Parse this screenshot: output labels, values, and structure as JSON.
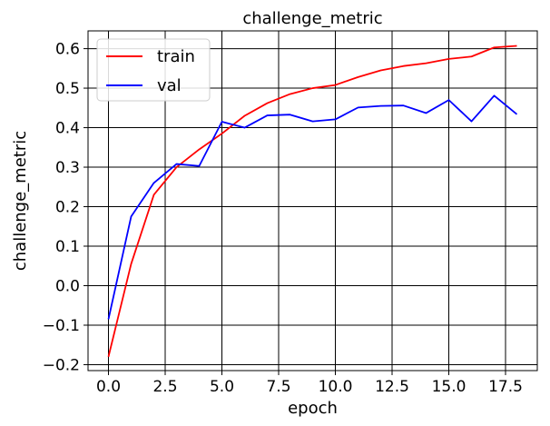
{
  "chart_data": {
    "type": "line",
    "title": "challenge_metric",
    "xlabel": "epoch",
    "ylabel": "challenge_metric",
    "xlim": [
      -0.9,
      18.9
    ],
    "ylim": [
      -0.215,
      0.645
    ],
    "x_ticks": [
      0,
      2.5,
      5,
      7.5,
      10,
      12.5,
      15,
      17.5
    ],
    "x_tick_labels": [
      "0.0",
      "2.5",
      "5.0",
      "7.5",
      "10.0",
      "12.5",
      "15.0",
      "17.5"
    ],
    "y_ticks": [
      -0.2,
      -0.1,
      0.0,
      0.1,
      0.2,
      0.3,
      0.4,
      0.5,
      0.6
    ],
    "y_tick_labels": [
      "−0.2",
      "−0.1",
      "0.0",
      "0.1",
      "0.2",
      "0.3",
      "0.4",
      "0.5",
      "0.6"
    ],
    "grid": true,
    "legend_position": "top-left",
    "x": [
      0,
      1,
      2,
      3,
      4,
      5,
      6,
      7,
      8,
      9,
      10,
      11,
      12,
      13,
      14,
      15,
      16,
      17,
      18
    ],
    "series": [
      {
        "name": "train",
        "color": "#ff0000",
        "values": [
          -0.18,
          0.055,
          0.23,
          0.3,
          0.345,
          0.385,
          0.43,
          0.462,
          0.485,
          0.5,
          0.508,
          0.528,
          0.545,
          0.556,
          0.563,
          0.574,
          0.58,
          0.603,
          0.607
        ]
      },
      {
        "name": "val",
        "color": "#0000ff",
        "values": [
          -0.085,
          0.175,
          0.26,
          0.308,
          0.303,
          0.415,
          0.4,
          0.431,
          0.433,
          0.416,
          0.421,
          0.451,
          0.455,
          0.456,
          0.437,
          0.47,
          0.416,
          0.481,
          0.434
        ]
      }
    ]
  }
}
